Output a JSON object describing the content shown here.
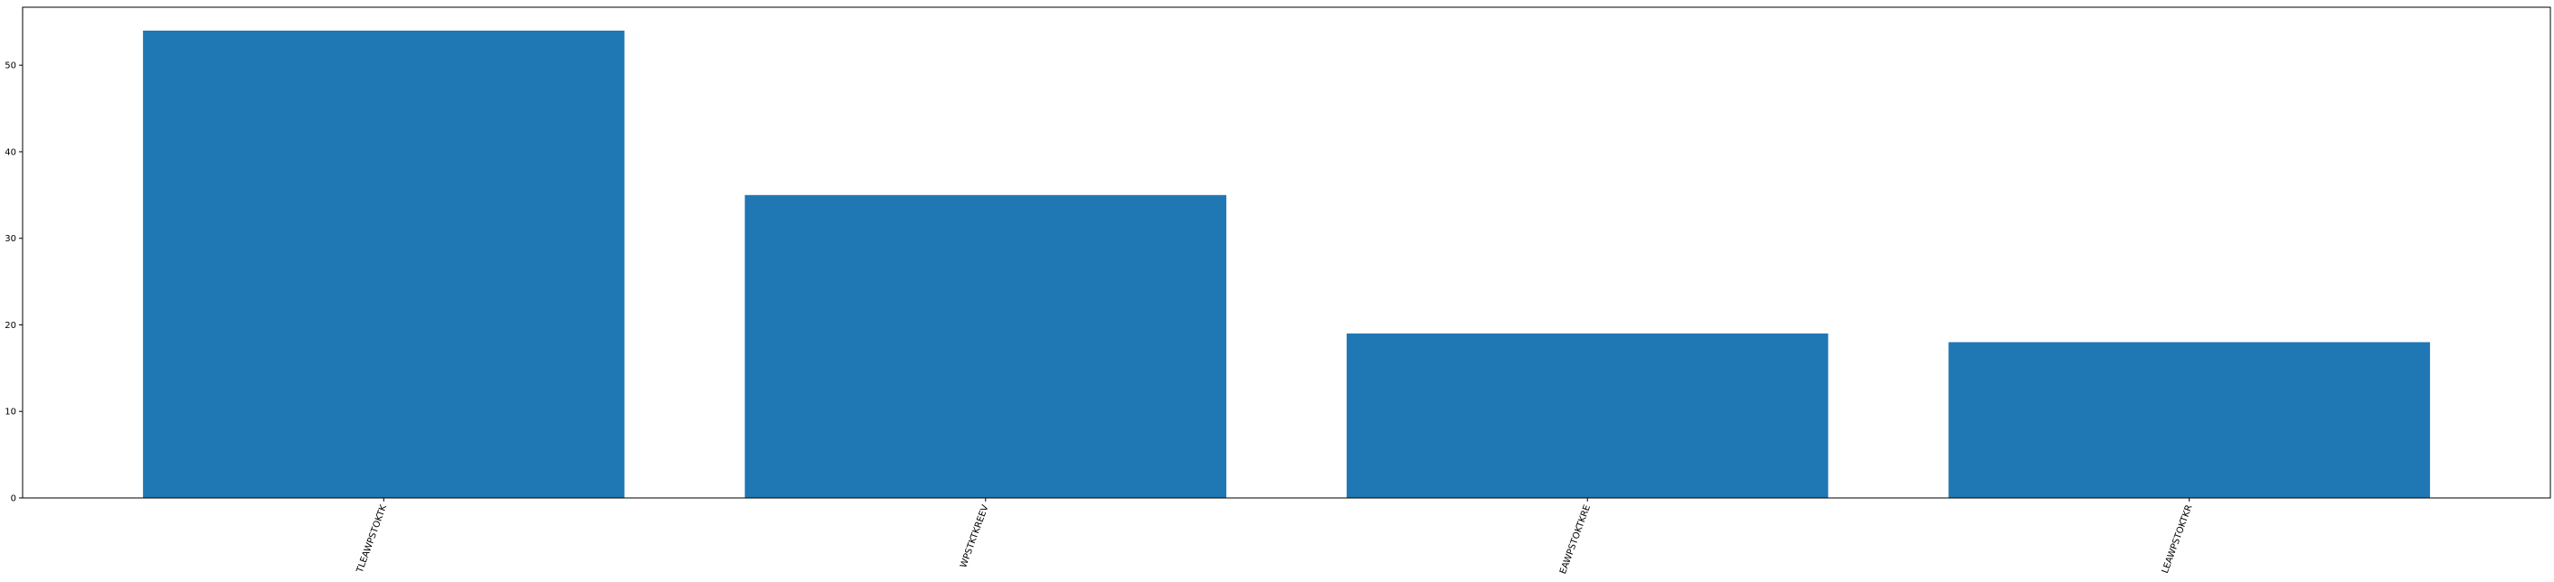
{
  "chart_data": {
    "type": "bar",
    "categories": [
      "TLEAWPSTOKTK",
      "WPSTKTKREEV",
      "EAWPSTOKTKRE",
      "LEAWPSTOKTKR"
    ],
    "values": [
      54,
      35,
      19,
      18
    ],
    "title": "",
    "xlabel": "",
    "ylabel": "",
    "ylim": [
      0,
      56.7
    ],
    "yticks": [
      0,
      10,
      20,
      30,
      40,
      50
    ],
    "x_tick_rotation_deg": 70,
    "grid": false,
    "legend": "none",
    "colors": {
      "bar": "#1f77b4",
      "axes": "#000000",
      "background": "#ffffff"
    }
  }
}
